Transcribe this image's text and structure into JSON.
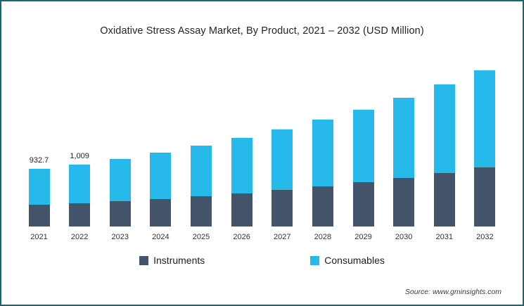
{
  "frame": {
    "border_color": "#15696e"
  },
  "chart_data": {
    "type": "bar",
    "stacked": true,
    "title": "Oxidative Stress Assay Market, By Product, 2021 – 2032 (USD Million)",
    "categories": [
      "2021",
      "2022",
      "2023",
      "2024",
      "2025",
      "2026",
      "2027",
      "2028",
      "2029",
      "2030",
      "2031",
      "2032"
    ],
    "series": [
      {
        "name": "Instruments",
        "color": "#44546a",
        "values": [
          350.0,
          380.0,
          415,
          450,
          495,
          540,
          595,
          650,
          715,
          790,
          870,
          960
        ]
      },
      {
        "name": "Consumables",
        "color": "#27b9e9",
        "values": [
          582.7,
          629.0,
          685,
          750,
          820,
          900,
          985,
          1080,
          1185,
          1300,
          1430,
          1572
        ]
      }
    ],
    "totals": [
      932.7,
      1009,
      1100,
      1200,
      1315,
      1440,
      1580,
      1730,
      1900,
      2090,
      2300,
      2532
    ],
    "data_labels": [
      "932.7",
      "1,009",
      "",
      "",
      "",
      "",
      "",
      "",
      "",
      "",
      "",
      ""
    ],
    "ylim": [
      0,
      2600
    ],
    "xlabel": "",
    "ylabel": "",
    "grid": false,
    "legend_position": "bottom"
  },
  "source": {
    "text": "Source: www.gminsights.com"
  }
}
